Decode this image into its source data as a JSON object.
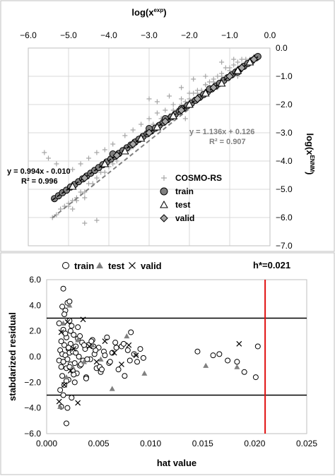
{
  "chart_data": [
    {
      "type": "scatter",
      "xlabel": "log(x",
      "xlabel_sup": "exp",
      "ylabel": "log(x",
      "ylabel_sup": "ENNM",
      "xlim": [
        -6.0,
        0.0
      ],
      "ylim": [
        -7.0,
        0.0
      ],
      "x_ticks": [
        -6.0,
        -5.0,
        -4.0,
        -3.0,
        -2.0,
        -1.0,
        0.0
      ],
      "x_tick_labels": [
        "−6.0",
        "−5.0",
        "−4.0",
        "−3.0",
        "−2.0",
        "−1.0",
        "0.0"
      ],
      "y_ticks": [
        0.0,
        -1.0,
        -2.0,
        -3.0,
        -4.0,
        -5.0,
        -6.0,
        -7.0
      ],
      "y_tick_labels": [
        "0.0",
        "−1.0",
        "−2.0",
        "−3.0",
        "−4.0",
        "−5.0",
        "−6.0",
        "−7.0"
      ],
      "x_axis_position": "top",
      "y_axis_position": "right",
      "grid": true,
      "legend_position": "bottom-right",
      "annotations": [
        {
          "text": "y = 0.994x - 0.010",
          "color": "#000000"
        },
        {
          "text": "R² = 0.996",
          "color": "#000000"
        },
        {
          "text": "y = 1.136x + 0.126",
          "color": "#7f7f7f"
        },
        {
          "text": "R² = 0.907",
          "color": "#7f7f7f"
        }
      ],
      "series": [
        {
          "name": "COSMO-RS",
          "marker": "plus",
          "color": "#a6a6a6",
          "trendline": {
            "slope": 1.136,
            "intercept": 0.126,
            "from": -5.4,
            "to": -0.3
          },
          "x": [
            -5.4,
            -5.3,
            -5.2,
            -5.1,
            -5.0,
            -4.9,
            -4.8,
            -4.7,
            -4.6,
            -4.5,
            -4.4,
            -4.3,
            -4.2,
            -4.1,
            -4.0,
            -3.9,
            -3.8,
            -3.7,
            -3.6,
            -3.5,
            -3.4,
            -3.3,
            -3.2,
            -3.1,
            -3.0,
            -2.9,
            -2.8,
            -2.7,
            -2.6,
            -2.5,
            -2.4,
            -2.3,
            -2.2,
            -2.1,
            -2.0,
            -1.9,
            -1.8,
            -1.7,
            -1.6,
            -1.5,
            -1.4,
            -1.3,
            -1.2,
            -1.1,
            -1.0,
            -0.9,
            -0.8,
            -0.7,
            -0.6,
            -0.5,
            -0.4,
            -0.3,
            -4.9,
            -4.7,
            -4.5,
            -4.3,
            -4.1,
            -3.9,
            -3.6,
            -3.4,
            -3.2,
            -3.0,
            -2.8,
            -2.6,
            -2.4,
            -2.2,
            -2.0,
            -1.8,
            -1.6,
            -1.4,
            -1.2,
            -1.0,
            -0.8,
            -0.6,
            -5.6,
            -5.5,
            -5.3,
            -4.9,
            -4.6,
            -4.3,
            -3.0,
            -2.8,
            -2.5,
            -2.2,
            -1.9,
            -1.6,
            -1.2,
            -0.9,
            -0.7,
            -0.5,
            -5.0,
            -4.8,
            -4.6,
            -3.3,
            -3.2,
            -3.1,
            -2.9,
            -2.7,
            -2.4,
            -2.1,
            -1.5,
            -1.3,
            -0.8,
            -0.4
          ],
          "y": [
            -6.0,
            -5.9,
            -5.7,
            -5.6,
            -5.6,
            -5.4,
            -5.3,
            -5.1,
            -5.1,
            -4.8,
            -4.8,
            -4.6,
            -4.4,
            -4.4,
            -4.2,
            -4.1,
            -4.0,
            -3.7,
            -3.6,
            -3.6,
            -3.5,
            -3.3,
            -3.1,
            -3.1,
            -3.0,
            -2.8,
            -2.8,
            -2.6,
            -2.5,
            -2.4,
            -2.2,
            -2.2,
            -2.0,
            -1.9,
            -1.8,
            -1.6,
            -1.6,
            -1.5,
            -1.3,
            -1.2,
            -1.2,
            -1.0,
            -0.9,
            -0.7,
            -0.7,
            -0.6,
            -0.5,
            -0.4,
            -0.4,
            -0.4,
            -0.3,
            -0.3,
            -4.3,
            -4.1,
            -3.9,
            -3.7,
            -3.6,
            -3.4,
            -3.1,
            -2.9,
            -2.7,
            -2.5,
            -2.3,
            -2.2,
            -2.0,
            -1.8,
            -1.6,
            -1.5,
            -1.3,
            -1.1,
            -1.0,
            -0.8,
            -0.7,
            -0.5,
            -3.7,
            -3.9,
            -4.1,
            -5.7,
            -6.2,
            -6.1,
            -1.8,
            -1.9,
            -1.7,
            -1.4,
            -1.1,
            -1.0,
            -0.5,
            -0.4,
            -0.6,
            -0.5,
            -5.5,
            -5.4,
            -5.3,
            -3.2,
            -3.2,
            -3.0,
            -2.7,
            -2.5,
            -2.5,
            -2.5,
            -1.4,
            -1.4,
            -1.0,
            -0.4
          ]
        },
        {
          "name": "train",
          "marker": "circle",
          "color": "#808080",
          "trendline": {
            "slope": 0.994,
            "intercept": -0.01,
            "from": -5.4,
            "to": -0.3
          },
          "x": [
            -5.35,
            -5.25,
            -5.15,
            -5.05,
            -4.95,
            -4.85,
            -4.75,
            -4.65,
            -4.55,
            -4.45,
            -4.35,
            -4.25,
            -4.15,
            -4.05,
            -3.95,
            -3.85,
            -3.75,
            -3.65,
            -3.55,
            -3.45,
            -3.35,
            -3.25,
            -3.15,
            -3.05,
            -2.95,
            -2.85,
            -2.75,
            -2.65,
            -2.55,
            -2.45,
            -2.35,
            -2.25,
            -2.15,
            -2.05,
            -1.95,
            -1.85,
            -1.75,
            -1.65,
            -1.55,
            -1.45,
            -1.35,
            -1.25,
            -1.15,
            -1.05,
            -0.95,
            -0.85,
            -0.75,
            -0.65,
            -0.55,
            -0.45,
            -0.35,
            -0.3,
            -3.9,
            -3.0,
            -2.6,
            -2.2,
            -1.5,
            -0.8
          ],
          "y": [
            -5.33,
            -5.23,
            -5.12,
            -5.03,
            -4.92,
            -4.83,
            -4.73,
            -4.63,
            -4.53,
            -4.43,
            -4.33,
            -4.23,
            -4.13,
            -4.03,
            -3.93,
            -3.83,
            -3.73,
            -3.63,
            -3.53,
            -3.43,
            -3.33,
            -3.23,
            -3.13,
            -3.04,
            -2.94,
            -2.84,
            -2.74,
            -2.64,
            -2.54,
            -2.44,
            -2.34,
            -2.24,
            -2.14,
            -2.04,
            -1.95,
            -1.85,
            -1.75,
            -1.65,
            -1.55,
            -1.45,
            -1.35,
            -1.25,
            -1.15,
            -1.05,
            -0.95,
            -0.85,
            -0.75,
            -0.65,
            -0.55,
            -0.45,
            -0.35,
            -0.3,
            -3.75,
            -2.85,
            -2.5,
            -2.15,
            -1.45,
            -0.85
          ]
        },
        {
          "name": "test",
          "marker": "triangle",
          "color": "#000000",
          "x": [
            -4.9,
            -4.1,
            -3.6,
            -3.2,
            -2.8,
            -2.4,
            -2.0,
            -1.6,
            -1.2,
            -0.8,
            -0.5
          ],
          "y": [
            -4.9,
            -4.1,
            -3.65,
            -3.2,
            -2.8,
            -2.4,
            -2.0,
            -1.6,
            -1.25,
            -0.8,
            -0.5
          ]
        },
        {
          "name": "valid",
          "marker": "diamond",
          "color": "#a6a6a6",
          "x": [
            -4.6,
            -3.8,
            -3.4,
            -3.0,
            -2.6,
            -2.2,
            -1.8,
            -1.4,
            -1.0,
            -0.7,
            -0.4
          ],
          "y": [
            -4.6,
            -3.8,
            -3.4,
            -3.0,
            -2.6,
            -2.2,
            -1.8,
            -1.4,
            -1.0,
            -0.7,
            -0.4
          ]
        }
      ]
    },
    {
      "type": "scatter",
      "xlabel": "hat value",
      "ylabel": "stabdarized residual",
      "xlim": [
        0.0,
        0.025
      ],
      "ylim": [
        -6.0,
        6.0
      ],
      "x_ticks": [
        0.0,
        0.005,
        0.01,
        0.015,
        0.02,
        0.025
      ],
      "x_tick_labels": [
        "0.000",
        "0.005",
        "0.010",
        "0.015",
        "0.020",
        "0.025"
      ],
      "y_ticks": [
        6.0,
        4.0,
        2.0,
        0.0,
        -2.0,
        -4.0,
        -6.0
      ],
      "y_tick_labels": [
        "6.0",
        "4.0",
        "2.0",
        "0.0",
        "−2.0",
        "−4.0",
        "−6.0"
      ],
      "grid": false,
      "legend_position": "top",
      "h_star_label": "h*=0.021",
      "h_star": 0.021,
      "h_star_color": "#e01010",
      "thresholds": [
        3.0,
        -3.0
      ],
      "series": [
        {
          "name": "train",
          "marker": "circle-open",
          "color": "#000000",
          "x": [
            0.0012,
            0.0013,
            0.0014,
            0.0014,
            0.0015,
            0.0015,
            0.0016,
            0.0016,
            0.0017,
            0.0017,
            0.0018,
            0.0018,
            0.0019,
            0.0019,
            0.002,
            0.002,
            0.0021,
            0.0021,
            0.0022,
            0.0022,
            0.0023,
            0.0023,
            0.0024,
            0.0025,
            0.0025,
            0.0026,
            0.0027,
            0.0028,
            0.0029,
            0.003,
            0.0031,
            0.0032,
            0.0034,
            0.0035,
            0.0037,
            0.0038,
            0.004,
            0.0042,
            0.0044,
            0.0046,
            0.0048,
            0.005,
            0.0052,
            0.0055,
            0.0058,
            0.006,
            0.0063,
            0.0066,
            0.0069,
            0.0072,
            0.0075,
            0.0078,
            0.0081,
            0.0084,
            0.0087,
            0.009,
            0.0093,
            0.0012,
            0.0013,
            0.0015,
            0.0016,
            0.0018,
            0.0019,
            0.0021,
            0.0022,
            0.0024,
            0.0026,
            0.0028,
            0.003,
            0.0033,
            0.0036,
            0.0039,
            0.0043,
            0.0047,
            0.0051,
            0.0056,
            0.0061,
            0.0067,
            0.0074,
            0.008,
            0.0014,
            0.0017,
            0.002,
            0.0023,
            0.0027,
            0.0032,
            0.0038,
            0.0045,
            0.0053,
            0.0145,
            0.016,
            0.0166,
            0.0174,
            0.0183,
            0.019,
            0.0201,
            0.0203,
            0.0016,
            0.0019,
            0.0022
          ],
          "y": [
            -0.3,
            0.5,
            -0.8,
            1.2,
            0.2,
            -1.5,
            2.1,
            -0.4,
            0.9,
            -2.2,
            3.6,
            0.1,
            -0.9,
            1.5,
            4.2,
            -0.2,
            0.6,
            -1.8,
            2.8,
            0.3,
            -0.6,
            1.0,
            -3.2,
            0.4,
            -1.1,
            1.7,
            -0.5,
            0.8,
            -1.3,
            2.3,
            0.0,
            -0.7,
            1.1,
            -0.3,
            0.6,
            -1.6,
            0.9,
            -0.2,
            1.3,
            0.2,
            -0.9,
            0.7,
            -1.2,
            0.4,
            1.5,
            -0.5,
            0.3,
            1.1,
            -1.0,
            0.8,
            -1.5,
            0.5,
            1.9,
            0.2,
            -0.4,
            0.6,
            -0.1,
            2.6,
            -2.6,
            3.9,
            -3.0,
            1.8,
            -1.9,
            0.7,
            -0.8,
            2.4,
            -1.4,
            0.3,
            1.4,
            -0.6,
            0.9,
            -0.2,
            1.2,
            0.5,
            -0.8,
            0.1,
            -0.4,
            0.7,
            1.0,
            -0.3,
            -3.9,
            3.3,
            -4.0,
            2.0,
            -2.0,
            1.6,
            -1.7,
            0.8,
            -1.0,
            0.4,
            0.1,
            0.2,
            -0.3,
            -0.4,
            -1.2,
            -1.6,
            0.8,
            5.3,
            -5.2,
            4.3
          ]
        },
        {
          "name": "test",
          "marker": "triangle",
          "color": "#808080",
          "x": [
            0.0013,
            0.0016,
            0.0019,
            0.0022,
            0.0025,
            0.003,
            0.0036,
            0.0044,
            0.0052,
            0.0063,
            0.0077,
            0.0086,
            0.0094,
            0.0153,
            0.0183
          ],
          "y": [
            -3.9,
            2.6,
            -1.6,
            4.0,
            -0.8,
            1.3,
            -0.4,
            0.9,
            -0.2,
            -2.5,
            1.6,
            0.2,
            -1.3,
            -0.7,
            -0.8
          ]
        },
        {
          "name": "valid",
          "marker": "x",
          "color": "#000000",
          "x": [
            0.0012,
            0.0014,
            0.0017,
            0.002,
            0.0023,
            0.0026,
            0.003,
            0.0035,
            0.0041,
            0.0048,
            0.0056,
            0.0065,
            0.0072,
            0.0079,
            0.0086,
            0.0185
          ],
          "y": [
            -3.5,
            1.9,
            -2.2,
            2.7,
            -1.1,
            0.6,
            -3.6,
            2.9,
            0.8,
            -0.4,
            1.2,
            0.3,
            -0.6,
            0.9,
            0.1,
            1.0
          ]
        }
      ]
    }
  ]
}
